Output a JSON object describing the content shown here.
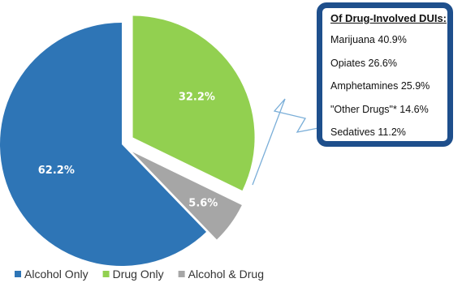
{
  "chart_data": {
    "type": "pie",
    "slices": [
      {
        "label": "Alcohol Only",
        "value": 62.2,
        "display": "62.2%",
        "color": "#2e75b6"
      },
      {
        "label": "Drug Only",
        "value": 32.2,
        "display": "32.2%",
        "color": "#92d050"
      },
      {
        "label": "Alcohol & Drug",
        "value": 5.6,
        "display": "5.6%",
        "color": "#a6a6a6"
      }
    ],
    "exploded": [
      "Drug Only",
      "Alcohol & Drug"
    ],
    "legend_position": "bottom-left",
    "title": "",
    "breakdown": {
      "title": "Of Drug-Involved DUIs:",
      "border_color": "#1e4f8c",
      "items": [
        {
          "text": "Marijuana 40.9%",
          "value": 40.9
        },
        {
          "text": "Opiates 26.6%",
          "value": 26.6
        },
        {
          "text": "Amphetamines 25.9%",
          "value": 25.9
        },
        {
          "text": "\"Other Drugs\"* 14.6%",
          "value": 14.6
        },
        {
          "text": "Sedatives 11.2%",
          "value": 11.2
        }
      ]
    }
  }
}
